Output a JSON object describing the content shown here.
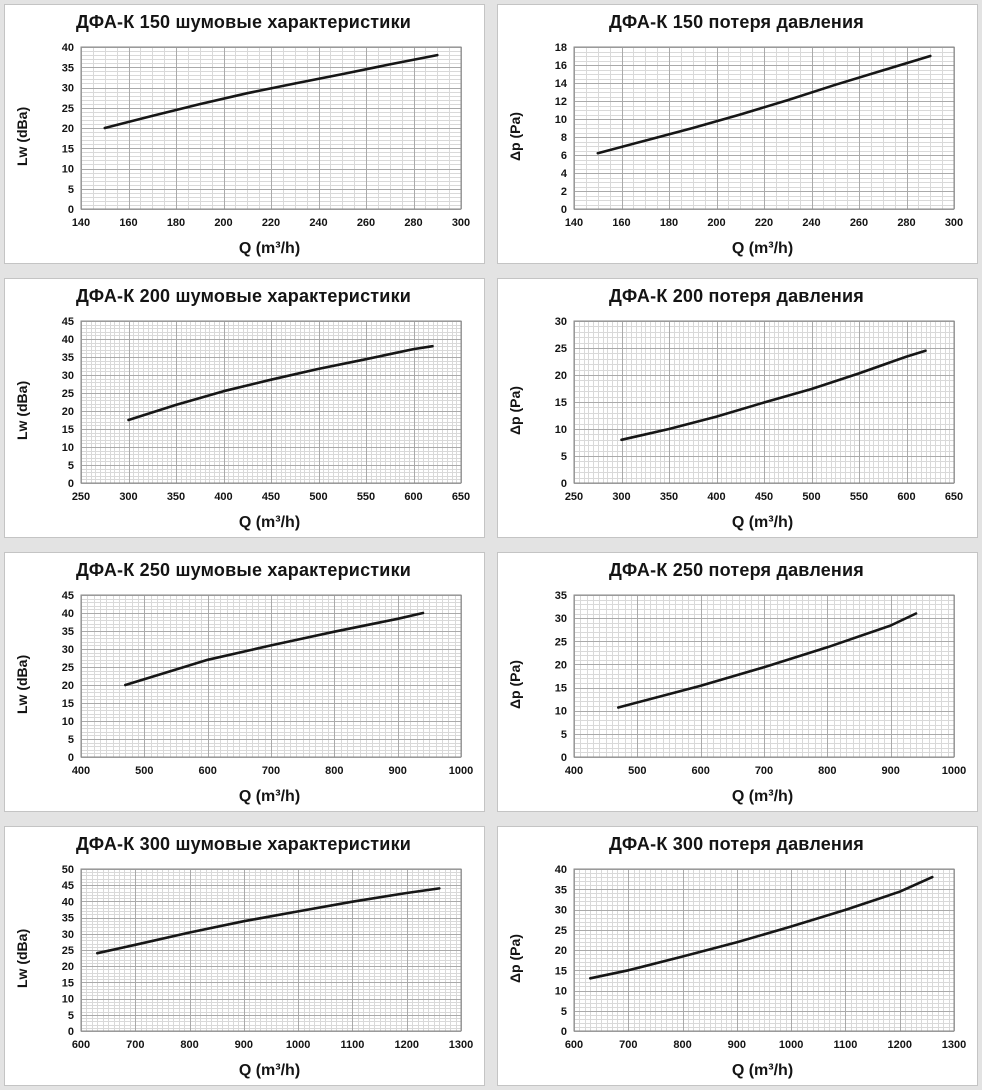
{
  "page": {
    "background": "#e3e3e3",
    "panel_background": "#ffffff",
    "panel_border": "#c4c4c4",
    "minor_grid_color": "#d9d9d9",
    "major_grid_color": "#aaaaaa",
    "plot_border_color": "#8a8a8a",
    "line_color": "#161616",
    "text_color": "#141414"
  },
  "chart_data": [
    {
      "type": "line",
      "title": "ДФА-К 150 шумовые характеристики",
      "xlabel": "Q (m³/h)",
      "ylabel": "Lw (dBa)",
      "xlim": [
        140,
        300
      ],
      "ylim": [
        0,
        40
      ],
      "xticks": [
        140,
        160,
        180,
        200,
        220,
        240,
        260,
        280,
        300
      ],
      "yticks": [
        0,
        5,
        10,
        15,
        20,
        25,
        30,
        35,
        40
      ],
      "x_minor_step": 5,
      "y_minor_step": 1,
      "grid": true,
      "legend": false,
      "x": [
        150,
        170,
        190,
        210,
        230,
        250,
        270,
        290
      ],
      "y": [
        20,
        23,
        25.9,
        28.6,
        31,
        33.3,
        35.7,
        38
      ]
    },
    {
      "type": "line",
      "title": "ДФА-К 150 потеря давления",
      "xlabel": "Q (m³/h)",
      "ylabel": "Δp (Pa)",
      "xlim": [
        140,
        300
      ],
      "ylim": [
        0,
        18
      ],
      "xticks": [
        140,
        160,
        180,
        200,
        220,
        240,
        260,
        280,
        300
      ],
      "yticks": [
        0,
        2,
        4,
        6,
        8,
        10,
        12,
        14,
        16,
        18
      ],
      "x_minor_step": 5,
      "y_minor_step": 0.5,
      "grid": true,
      "legend": false,
      "x": [
        150,
        170,
        190,
        210,
        230,
        250,
        270,
        290
      ],
      "y": [
        6.2,
        7.6,
        9,
        10.5,
        12.1,
        13.8,
        15.4,
        17
      ]
    },
    {
      "type": "line",
      "title": "ДФА-К 200 шумовые характеристики",
      "xlabel": "Q (m³/h)",
      "ylabel": "Lw (dBa)",
      "xlim": [
        250,
        650
      ],
      "ylim": [
        0,
        45
      ],
      "xticks": [
        250,
        300,
        350,
        400,
        450,
        500,
        550,
        600,
        650
      ],
      "yticks": [
        0,
        5,
        10,
        15,
        20,
        25,
        30,
        35,
        40,
        45
      ],
      "x_minor_step": 5,
      "y_minor_step": 1,
      "grid": true,
      "legend": false,
      "x": [
        300,
        350,
        400,
        450,
        500,
        550,
        600,
        620
      ],
      "y": [
        17.5,
        21.7,
        25.5,
        28.7,
        31.7,
        34.4,
        37.2,
        38
      ]
    },
    {
      "type": "line",
      "title": "ДФА-К 200 потеря давления",
      "xlabel": "Q (m³/h)",
      "ylabel": "Δp (Pa)",
      "xlim": [
        250,
        650
      ],
      "ylim": [
        0,
        30
      ],
      "xticks": [
        250,
        300,
        350,
        400,
        450,
        500,
        550,
        600,
        650
      ],
      "yticks": [
        0,
        5,
        10,
        15,
        20,
        25,
        30
      ],
      "x_minor_step": 5,
      "y_minor_step": 1,
      "grid": true,
      "legend": false,
      "x": [
        300,
        350,
        400,
        450,
        500,
        550,
        600,
        620
      ],
      "y": [
        8,
        10,
        12.3,
        14.9,
        17.4,
        20.3,
        23.4,
        24.5
      ]
    },
    {
      "type": "line",
      "title": "ДФА-К 250 шумовые характеристики",
      "xlabel": "Q (m³/h)",
      "ylabel": "Lw (dBa)",
      "xlim": [
        400,
        1000
      ],
      "ylim": [
        0,
        45
      ],
      "xticks": [
        400,
        500,
        600,
        700,
        800,
        900,
        1000
      ],
      "yticks": [
        0,
        5,
        10,
        15,
        20,
        25,
        30,
        35,
        40,
        45
      ],
      "x_minor_step": 10,
      "y_minor_step": 1,
      "grid": true,
      "legend": false,
      "x": [
        470,
        550,
        600,
        700,
        800,
        900,
        940
      ],
      "y": [
        20,
        24.3,
        27,
        31,
        34.8,
        38.4,
        40
      ]
    },
    {
      "type": "line",
      "title": "ДФА-К 250 потеря давления",
      "xlabel": "Q (m³/h)",
      "ylabel": "Δp (Pa)",
      "xlim": [
        400,
        1000
      ],
      "ylim": [
        0,
        35
      ],
      "xticks": [
        400,
        500,
        600,
        700,
        800,
        900,
        1000
      ],
      "yticks": [
        0,
        5,
        10,
        15,
        20,
        25,
        30,
        35
      ],
      "x_minor_step": 10,
      "y_minor_step": 1,
      "grid": true,
      "legend": false,
      "x": [
        470,
        550,
        600,
        700,
        800,
        900,
        940
      ],
      "y": [
        10.7,
        13.6,
        15.4,
        19.4,
        23.7,
        28.4,
        31
      ]
    },
    {
      "type": "line",
      "title": "ДФА-К 300 шумовые характеристики",
      "xlabel": "Q (m³/h)",
      "ylabel": "Lw (dBa)",
      "xlim": [
        600,
        1300
      ],
      "ylim": [
        0,
        50
      ],
      "xticks": [
        600,
        700,
        800,
        900,
        1000,
        1100,
        1200,
        1300
      ],
      "yticks": [
        0,
        5,
        10,
        15,
        20,
        25,
        30,
        35,
        40,
        45,
        50
      ],
      "x_minor_step": 10,
      "y_minor_step": 1,
      "grid": true,
      "legend": false,
      "x": [
        630,
        700,
        800,
        900,
        1000,
        1100,
        1200,
        1260
      ],
      "y": [
        24,
        26.6,
        30.4,
        33.9,
        36.9,
        39.9,
        42.6,
        44
      ]
    },
    {
      "type": "line",
      "title": "ДФА-К 300 потеря давления",
      "xlabel": "Q (m³/h)",
      "ylabel": "Δp (Pa)",
      "xlim": [
        600,
        1300
      ],
      "ylim": [
        0,
        40
      ],
      "xticks": [
        600,
        700,
        800,
        900,
        1000,
        1100,
        1200,
        1300
      ],
      "yticks": [
        0,
        5,
        10,
        15,
        20,
        25,
        30,
        35,
        40
      ],
      "x_minor_step": 10,
      "y_minor_step": 1,
      "grid": true,
      "legend": false,
      "x": [
        630,
        700,
        800,
        900,
        1000,
        1100,
        1200,
        1260
      ],
      "y": [
        13,
        15,
        18.4,
        21.9,
        25.8,
        29.9,
        34.4,
        38
      ]
    }
  ]
}
